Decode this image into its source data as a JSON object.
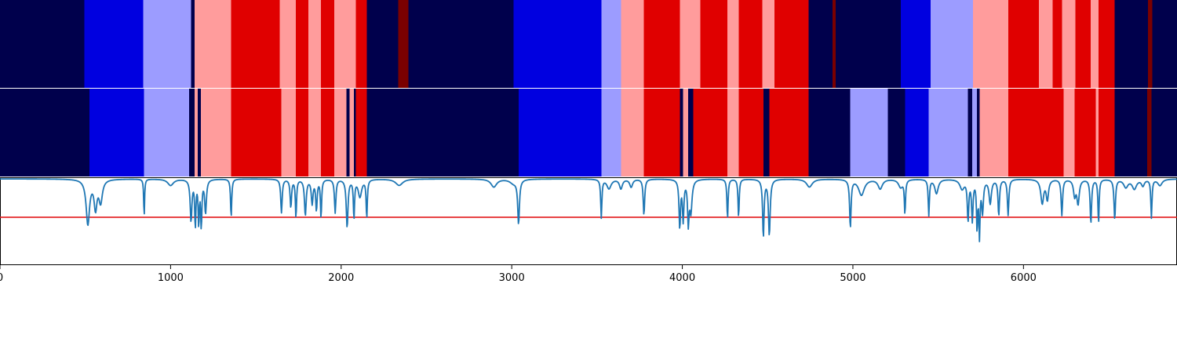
{
  "colors": {
    "background": "#ffffff",
    "panel_border": "#000000",
    "line": "#1f77b4",
    "threshold": "#e31a1c"
  },
  "chart_data": {
    "type": "heatmap",
    "grid": false,
    "xlim": [
      0,
      6900
    ],
    "x_ticks": [
      {
        "value": 0,
        "label": "0"
      },
      {
        "value": 1000,
        "label": "1000"
      },
      {
        "value": 2000,
        "label": "2000"
      },
      {
        "value": 3000,
        "label": "3000"
      },
      {
        "value": 4000,
        "label": "4000"
      },
      {
        "value": 5000,
        "label": "5000"
      },
      {
        "value": 6000,
        "label": "6000"
      }
    ],
    "palette": {
      "0": "#00004c",
      "1": "#0000e0",
      "2": "#9c9cff",
      "3": "#ff9c9c",
      "4": "#e00000",
      "5": "#7a0000"
    },
    "tracks": [
      {
        "segments": [
          [
            0,
            494,
            0
          ],
          [
            494,
            840,
            1
          ],
          [
            840,
            1120,
            2
          ],
          [
            1120,
            1140,
            0
          ],
          [
            1140,
            1355,
            3
          ],
          [
            1355,
            1640,
            4
          ],
          [
            1640,
            1735,
            3
          ],
          [
            1735,
            1808,
            4
          ],
          [
            1808,
            1882,
            3
          ],
          [
            1882,
            1960,
            4
          ],
          [
            1960,
            2085,
            3
          ],
          [
            2085,
            2150,
            4
          ],
          [
            2150,
            2335,
            0
          ],
          [
            2335,
            2395,
            5
          ],
          [
            2395,
            3010,
            0
          ],
          [
            3010,
            3525,
            1
          ],
          [
            3525,
            3640,
            2
          ],
          [
            3640,
            3775,
            3
          ],
          [
            3775,
            3985,
            4
          ],
          [
            3985,
            4105,
            3
          ],
          [
            4105,
            4265,
            4
          ],
          [
            4265,
            4330,
            3
          ],
          [
            4330,
            4470,
            4
          ],
          [
            4470,
            4540,
            3
          ],
          [
            4540,
            4740,
            4
          ],
          [
            4740,
            4880,
            0
          ],
          [
            4880,
            4900,
            5
          ],
          [
            4900,
            5280,
            0
          ],
          [
            5280,
            5455,
            1
          ],
          [
            5455,
            5705,
            2
          ],
          [
            5705,
            5910,
            3
          ],
          [
            5910,
            6090,
            4
          ],
          [
            6090,
            6170,
            3
          ],
          [
            6170,
            6225,
            4
          ],
          [
            6225,
            6305,
            3
          ],
          [
            6305,
            6395,
            4
          ],
          [
            6395,
            6440,
            3
          ],
          [
            6440,
            6535,
            4
          ],
          [
            6535,
            6730,
            0
          ],
          [
            6730,
            6755,
            5
          ],
          [
            6755,
            6900,
            0
          ]
        ]
      },
      {
        "segments": [
          [
            0,
            525,
            0
          ],
          [
            525,
            845,
            1
          ],
          [
            845,
            1108,
            2
          ],
          [
            1108,
            1140,
            0
          ],
          [
            1140,
            1160,
            3
          ],
          [
            1160,
            1178,
            0
          ],
          [
            1178,
            1355,
            3
          ],
          [
            1355,
            1650,
            4
          ],
          [
            1650,
            1735,
            3
          ],
          [
            1735,
            1808,
            4
          ],
          [
            1808,
            1882,
            3
          ],
          [
            1882,
            1960,
            4
          ],
          [
            1960,
            2030,
            3
          ],
          [
            2030,
            2050,
            0
          ],
          [
            2050,
            2075,
            3
          ],
          [
            2075,
            2085,
            0
          ],
          [
            2085,
            2150,
            4
          ],
          [
            2150,
            3040,
            0
          ],
          [
            3040,
            3525,
            1
          ],
          [
            3525,
            3640,
            2
          ],
          [
            3640,
            3775,
            3
          ],
          [
            3775,
            3985,
            4
          ],
          [
            3985,
            4005,
            0
          ],
          [
            4005,
            4035,
            3
          ],
          [
            4035,
            4065,
            0
          ],
          [
            4065,
            4265,
            4
          ],
          [
            4265,
            4330,
            3
          ],
          [
            4330,
            4475,
            4
          ],
          [
            4475,
            4510,
            0
          ],
          [
            4510,
            4740,
            4
          ],
          [
            4740,
            4985,
            0
          ],
          [
            4985,
            5205,
            2
          ],
          [
            5205,
            5305,
            0
          ],
          [
            5305,
            5445,
            1
          ],
          [
            5445,
            5675,
            2
          ],
          [
            5675,
            5700,
            0
          ],
          [
            5700,
            5728,
            2
          ],
          [
            5728,
            5742,
            0
          ],
          [
            5742,
            5910,
            3
          ],
          [
            5910,
            6235,
            4
          ],
          [
            6235,
            6300,
            3
          ],
          [
            6300,
            6425,
            4
          ],
          [
            6425,
            6440,
            3
          ],
          [
            6440,
            6535,
            4
          ],
          [
            6535,
            6725,
            0
          ],
          [
            6725,
            6750,
            5
          ],
          [
            6750,
            6900,
            0
          ]
        ]
      }
    ],
    "line": {
      "ylim": [
        -0.6,
        0.5
      ],
      "baseline": 0.48,
      "threshold": 0.0,
      "dips": [
        [
          515,
          0.56,
          12
        ],
        [
          560,
          0.35,
          10
        ],
        [
          590,
          0.28,
          12
        ],
        [
          845,
          0.48,
          3
        ],
        [
          1000,
          0.08,
          20
        ],
        [
          1120,
          0.52,
          6
        ],
        [
          1145,
          0.58,
          4
        ],
        [
          1165,
          0.55,
          4
        ],
        [
          1180,
          0.58,
          4
        ],
        [
          1205,
          0.42,
          6
        ],
        [
          1355,
          0.48,
          4
        ],
        [
          1650,
          0.42,
          5
        ],
        [
          1705,
          0.35,
          5
        ],
        [
          1735,
          0.48,
          4
        ],
        [
          1790,
          0.45,
          6
        ],
        [
          1830,
          0.3,
          6
        ],
        [
          1855,
          0.38,
          5
        ],
        [
          1882,
          0.48,
          4
        ],
        [
          1965,
          0.42,
          5
        ],
        [
          2035,
          0.6,
          6
        ],
        [
          2075,
          0.48,
          4
        ],
        [
          2110,
          0.22,
          12
        ],
        [
          2150,
          0.48,
          4
        ],
        [
          2340,
          0.08,
          25
        ],
        [
          2895,
          0.1,
          20
        ],
        [
          3010,
          0.05,
          25
        ],
        [
          3040,
          0.55,
          6
        ],
        [
          3525,
          0.48,
          4
        ],
        [
          3570,
          0.12,
          15
        ],
        [
          3640,
          0.12,
          10
        ],
        [
          3700,
          0.1,
          10
        ],
        [
          3775,
          0.45,
          5
        ],
        [
          3985,
          0.6,
          5
        ],
        [
          4005,
          0.5,
          5
        ],
        [
          4035,
          0.52,
          5
        ],
        [
          4050,
          0.4,
          8
        ],
        [
          4265,
          0.5,
          4
        ],
        [
          4330,
          0.48,
          4
        ],
        [
          4475,
          0.72,
          5
        ],
        [
          4510,
          0.7,
          6
        ],
        [
          4745,
          0.1,
          20
        ],
        [
          4985,
          0.6,
          5
        ],
        [
          5050,
          0.2,
          20
        ],
        [
          5160,
          0.12,
          15
        ],
        [
          5280,
          0.1,
          15
        ],
        [
          5305,
          0.42,
          4
        ],
        [
          5445,
          0.45,
          4
        ],
        [
          5490,
          0.18,
          12
        ],
        [
          5640,
          0.12,
          15
        ],
        [
          5675,
          0.5,
          5
        ],
        [
          5700,
          0.5,
          5
        ],
        [
          5728,
          0.6,
          4
        ],
        [
          5742,
          0.68,
          4
        ],
        [
          5760,
          0.4,
          6
        ],
        [
          5805,
          0.3,
          8
        ],
        [
          5855,
          0.45,
          5
        ],
        [
          5910,
          0.45,
          5
        ],
        [
          6110,
          0.3,
          10
        ],
        [
          6140,
          0.25,
          8
        ],
        [
          6225,
          0.45,
          5
        ],
        [
          6300,
          0.2,
          8
        ],
        [
          6320,
          0.3,
          8
        ],
        [
          6395,
          0.55,
          5
        ],
        [
          6440,
          0.55,
          4
        ],
        [
          6535,
          0.5,
          5
        ],
        [
          6600,
          0.1,
          15
        ],
        [
          6650,
          0.12,
          15
        ],
        [
          6700,
          0.08,
          10
        ],
        [
          6750,
          0.48,
          4
        ],
        [
          6800,
          0.08,
          15
        ]
      ]
    }
  }
}
